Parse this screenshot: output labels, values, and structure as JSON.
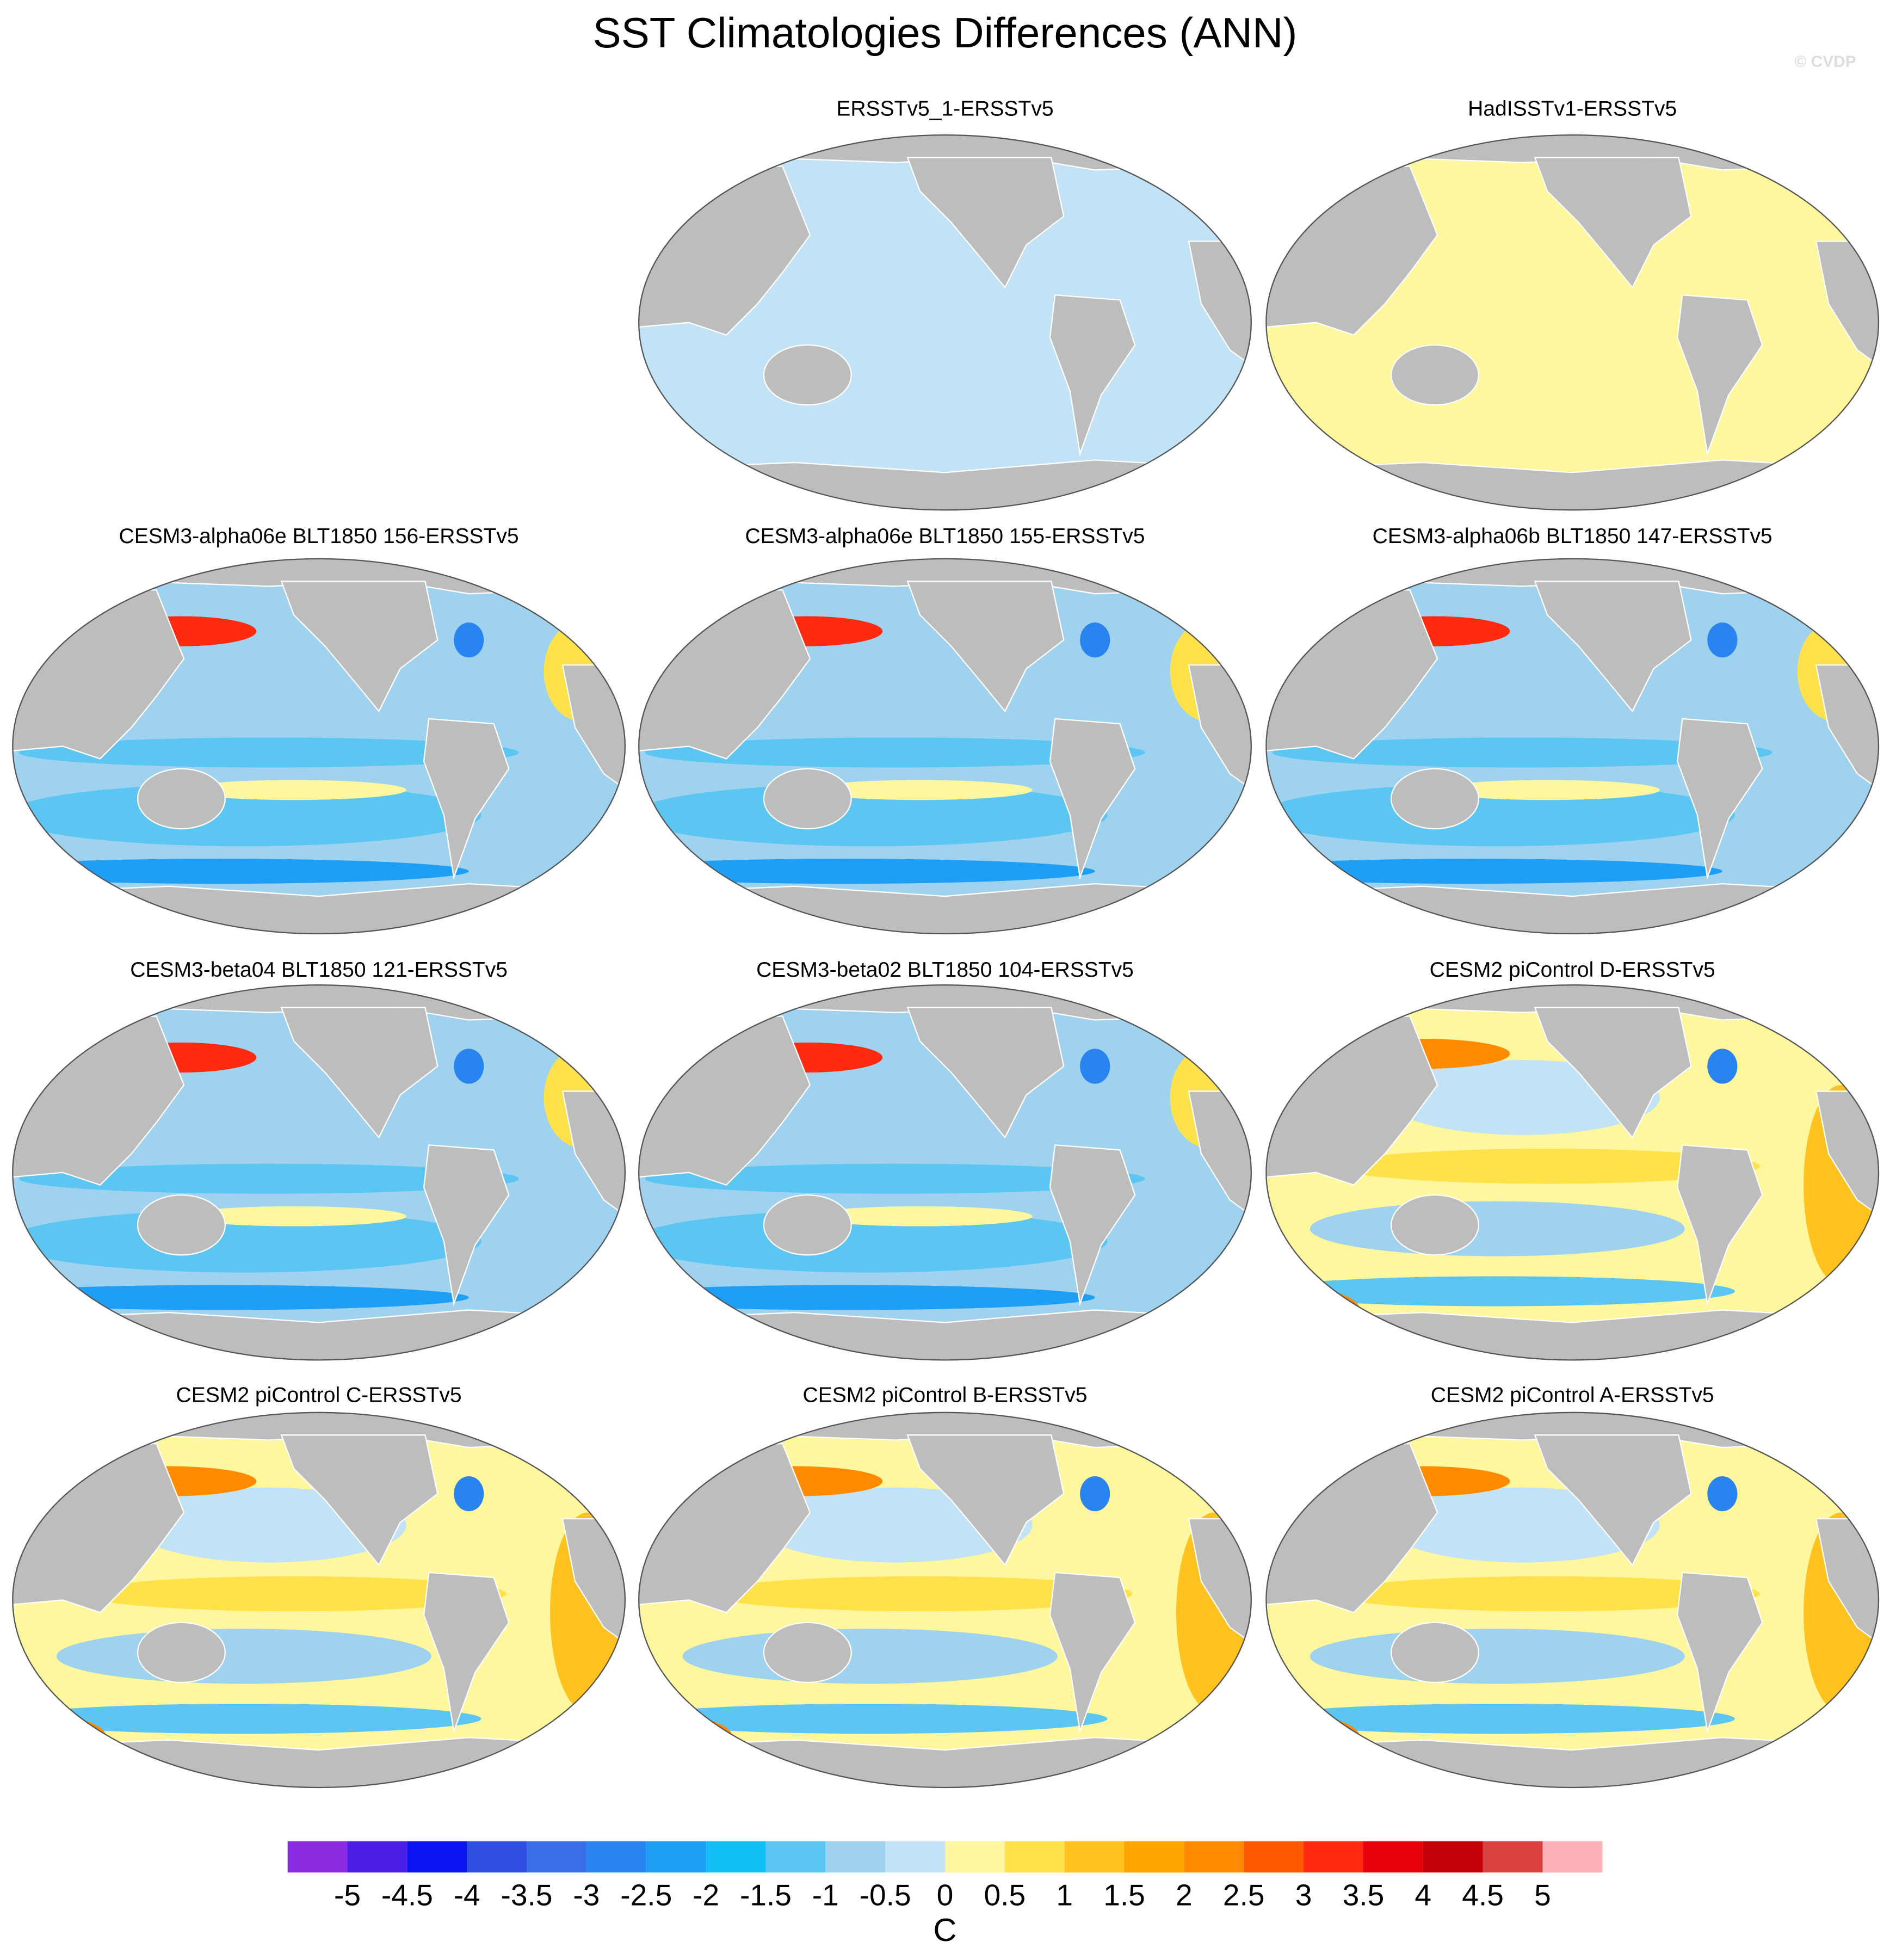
{
  "title": "SST Climatologies Differences (ANN)",
  "watermark": "© CVDP",
  "panels": [
    {
      "title": "ERSSTv5_1-ERSSTv5"
    },
    {
      "title": "HadISSTv1-ERSSTv5"
    },
    {
      "title": "CESM3-alpha06e BLT1850 156-ERSSTv5"
    },
    {
      "title": "CESM3-alpha06e BLT1850 155-ERSSTv5"
    },
    {
      "title": "CESM3-alpha06b BLT1850 147-ERSSTv5"
    },
    {
      "title": "CESM3-beta04 BLT1850 121-ERSSTv5"
    },
    {
      "title": "CESM3-beta02 BLT1850 104-ERSSTv5"
    },
    {
      "title": "CESM2 piControl D-ERSSTv5"
    },
    {
      "title": "CESM2 piControl C-ERSSTv5"
    },
    {
      "title": "CESM2 piControl B-ERSSTv5"
    },
    {
      "title": "CESM2 piControl A-ERSSTv5"
    }
  ],
  "colorbar": {
    "label": "C",
    "ticks": [
      -5,
      -4.5,
      -4,
      -3.5,
      -3,
      -2.5,
      -2,
      -1.5,
      -1,
      -0.5,
      0,
      0.5,
      1,
      1.5,
      2,
      2.5,
      3,
      3.5,
      4,
      4.5,
      5
    ],
    "colors": [
      "#8a2be2",
      "#4b1ee8",
      "#0a14f0",
      "#2f4fe0",
      "#3a6ee8",
      "#2a84f0",
      "#1e9ef5",
      "#10bdf5",
      "#5cc6f2",
      "#9ed2ef",
      "#c2e2f5",
      "#fff79e",
      "#ffe14a",
      "#ffc21e",
      "#ffa500",
      "#ff8a00",
      "#ff5a00",
      "#ff2a10",
      "#e8000c",
      "#c40008",
      "#d94040",
      "#ffb0b8"
    ]
  }
}
